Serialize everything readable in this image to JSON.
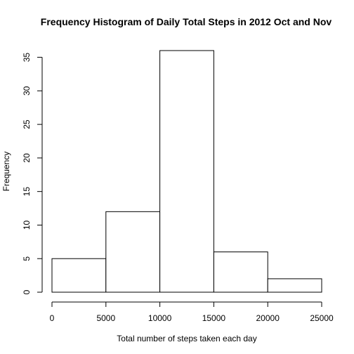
{
  "chart_data": {
    "type": "bar",
    "title": "Frequency Histogram of Daily Total Steps in 2012 Oct and Nov",
    "xlabel": "Total number of steps taken each day",
    "ylabel": "Frequency",
    "bins": [
      {
        "from": 0,
        "to": 5000,
        "count": 5
      },
      {
        "from": 5000,
        "to": 10000,
        "count": 12
      },
      {
        "from": 10000,
        "to": 15000,
        "count": 36
      },
      {
        "from": 15000,
        "to": 20000,
        "count": 6
      },
      {
        "from": 20000,
        "to": 25000,
        "count": 2
      }
    ],
    "xlim": [
      0,
      25000
    ],
    "ylim": [
      0,
      37
    ],
    "x_ticks": [
      0,
      5000,
      10000,
      15000,
      20000,
      25000
    ],
    "y_ticks": [
      0,
      5,
      10,
      15,
      20,
      25,
      30,
      35
    ],
    "grid": false,
    "colors": {
      "bar_fill": "#ffffff",
      "bar_stroke": "#000000",
      "axis": "#000000"
    }
  }
}
